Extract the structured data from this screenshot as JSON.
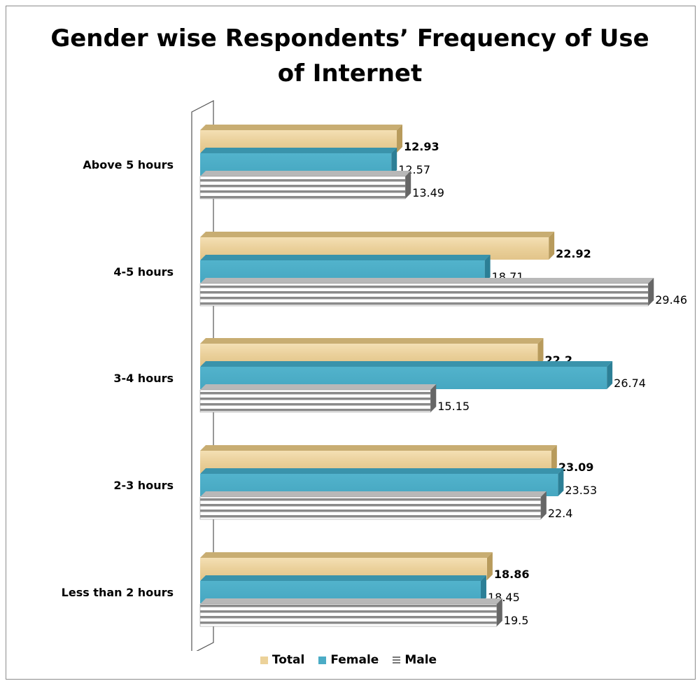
{
  "chart_data": {
    "type": "bar",
    "orientation": "horizontal",
    "title": "Gender wise Respondents’ Frequency of Use of Internet",
    "categories": [
      "Above 5 hours",
      "4-5 hours",
      "3-4 hours",
      "2-3 hours",
      "Less than 2 hours"
    ],
    "series": [
      {
        "name": "Total",
        "values": [
          12.93,
          22.92,
          22.2,
          23.09,
          18.86
        ],
        "color": "#ecd29a",
        "label_bold": true
      },
      {
        "name": "Female",
        "values": [
          12.57,
          18.71,
          26.74,
          23.53,
          18.45
        ],
        "color": "#4bacc6",
        "label_bold": false
      },
      {
        "name": "Male",
        "values": [
          13.49,
          29.46,
          15.15,
          22.4,
          19.5
        ],
        "color": "#a6a6a6",
        "label_bold": false
      }
    ],
    "xlim": [
      0,
      30
    ],
    "grid": false,
    "legend_position": "bottom",
    "bar_style": "3d"
  }
}
